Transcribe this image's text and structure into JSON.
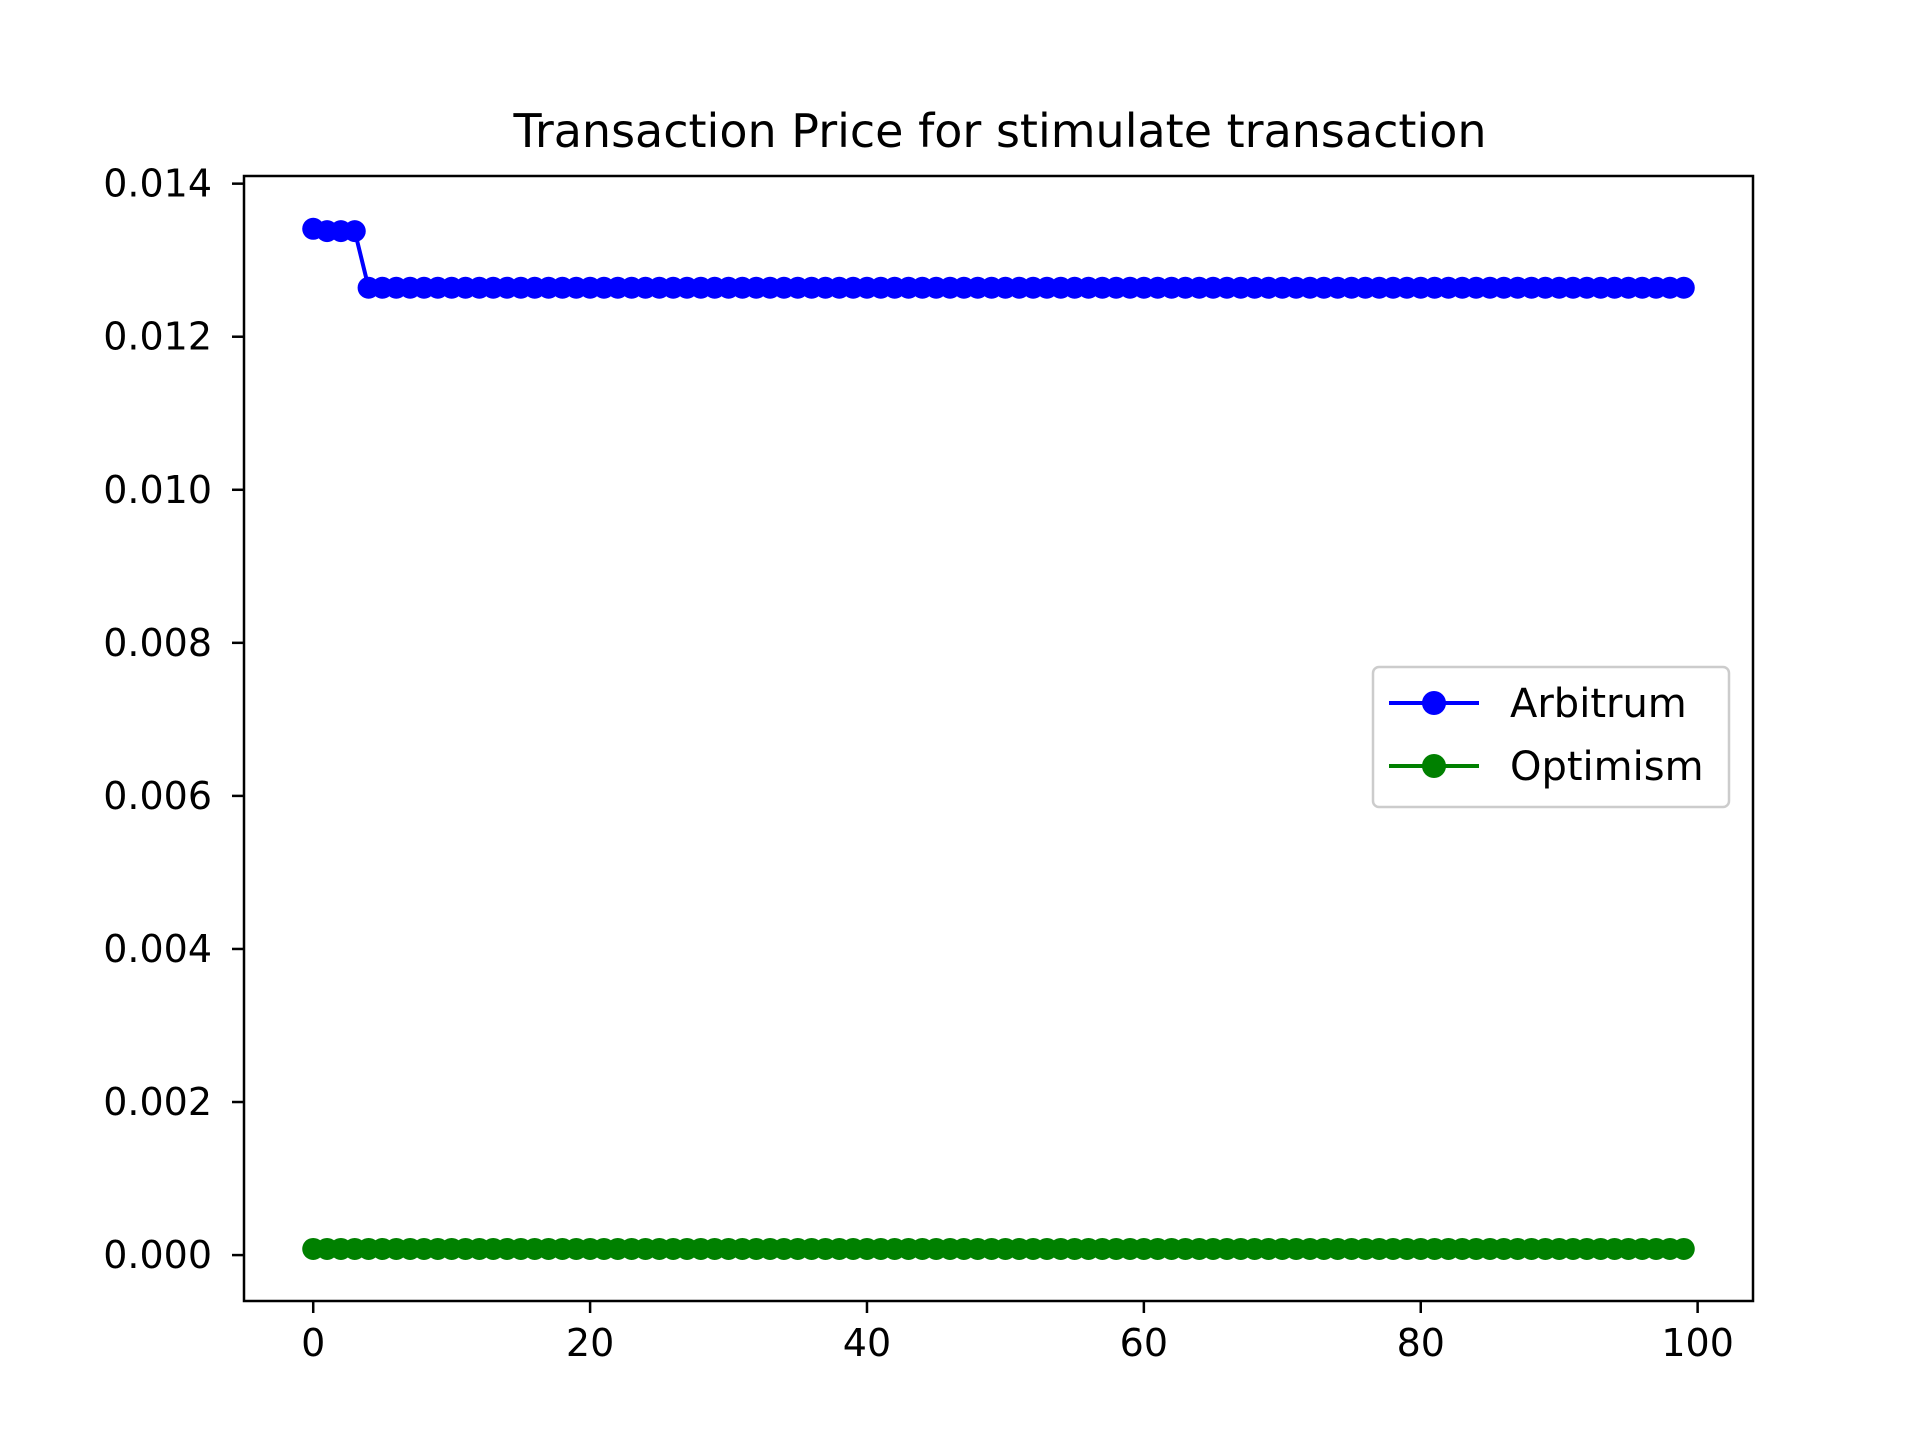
{
  "chart_data": {
    "type": "line",
    "title": "Transaction Price for stimulate transaction",
    "xlabel": "",
    "ylabel": "",
    "xlim": [
      -5,
      104
    ],
    "ylim": [
      -0.0006,
      0.0141
    ],
    "x_ticks": [
      0,
      20,
      40,
      60,
      80,
      100
    ],
    "y_ticks": [
      0.0,
      0.002,
      0.004,
      0.006,
      0.008,
      0.01,
      0.012,
      0.014
    ],
    "x_tick_labels": [
      "0",
      "20",
      "40",
      "60",
      "80",
      "100"
    ],
    "y_tick_labels": [
      "0.000",
      "0.002",
      "0.004",
      "0.006",
      "0.008",
      "0.010",
      "0.012",
      "0.014"
    ],
    "grid": false,
    "legend_position": "center-right",
    "markers": "circle",
    "series": [
      {
        "name": "Arbitrum",
        "color": "#0000ff",
        "x": "0-99",
        "values_first": [
          0.01341,
          0.01338,
          0.01338,
          0.01338
        ],
        "value_rest": 0.01264
      },
      {
        "name": "Optimism",
        "color": "#008000",
        "x": "0-99",
        "value_all": 8e-05
      }
    ]
  }
}
